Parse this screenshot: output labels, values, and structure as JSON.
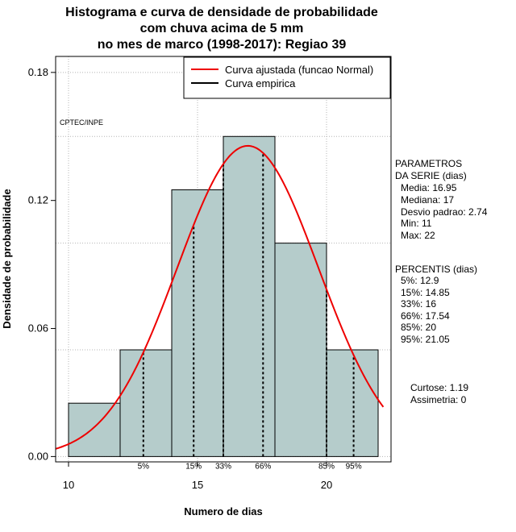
{
  "chart_data": {
    "type": "bar",
    "title_lines": [
      "Histograma e curva de densidade de probabilidade",
      "com chuva acima de 5 mm",
      "no mes de marco (1998-2017): Regiao 39"
    ],
    "xlabel": "Numero de dias",
    "ylabel": "Densidade de probabilidade",
    "xlim": [
      9.5,
      22.5
    ],
    "ylim": [
      -0.0025,
      0.1875
    ],
    "x_ticks": [
      10,
      15,
      20
    ],
    "y_ticks": [
      0.0,
      0.06,
      0.12,
      0.18
    ],
    "y_tick_labels": [
      "0.00",
      "0.06",
      "0.12",
      "0.18"
    ],
    "bins": [
      {
        "start": 10,
        "end": 12,
        "density": 0.025
      },
      {
        "start": 12,
        "end": 14,
        "density": 0.05
      },
      {
        "start": 14,
        "end": 16,
        "density": 0.125
      },
      {
        "start": 16,
        "end": 18,
        "density": 0.15
      },
      {
        "start": 18,
        "end": 20,
        "density": 0.1
      },
      {
        "start": 20,
        "end": 22,
        "density": 0.05
      }
    ],
    "gridlines_y": [
      0.0,
      0.05,
      0.1,
      0.15,
      0.18
    ],
    "gridlines_x": [
      10,
      15,
      20
    ],
    "normal_fit": {
      "mean": 16.95,
      "sd": 2.74,
      "x_range": [
        9.5,
        22.2
      ]
    },
    "percentile_lines": [
      {
        "label": "5%",
        "x": 12.9
      },
      {
        "label": "15%",
        "x": 14.85
      },
      {
        "label": "33%",
        "x": 16
      },
      {
        "label": "66%",
        "x": 17.54
      },
      {
        "label": "85%",
        "x": 20
      },
      {
        "label": "95%",
        "x": 21.05
      }
    ],
    "legend": {
      "position": "top-right",
      "entries": [
        {
          "label": "Curva ajustada (funcao Normal)",
          "color": "#ee0000"
        },
        {
          "label": "Curva empirica",
          "color": "#000000"
        }
      ]
    },
    "annotation": "CPTEC/INPE",
    "colors": {
      "bar_fill": "#b5cccb",
      "curve": "#ee0000",
      "grid": "#b4b4b4"
    }
  },
  "stats_panel": {
    "params_heading": [
      "PARAMETROS",
      "DA SERIE (dias)"
    ],
    "params": [
      "Media: 16.95",
      "Mediana: 17",
      "Desvio padrao: 2.74",
      "Min: 11",
      "Max: 22"
    ],
    "percentis_heading": "PERCENTIS (dias)",
    "percentis": [
      "5%: 12.9",
      "15%: 14.85",
      "33%: 16",
      "66%: 17.54",
      "85%: 20",
      "95%: 21.05"
    ],
    "curtose": "Curtose: 1.19",
    "assimetria": "Assimetria: 0"
  }
}
